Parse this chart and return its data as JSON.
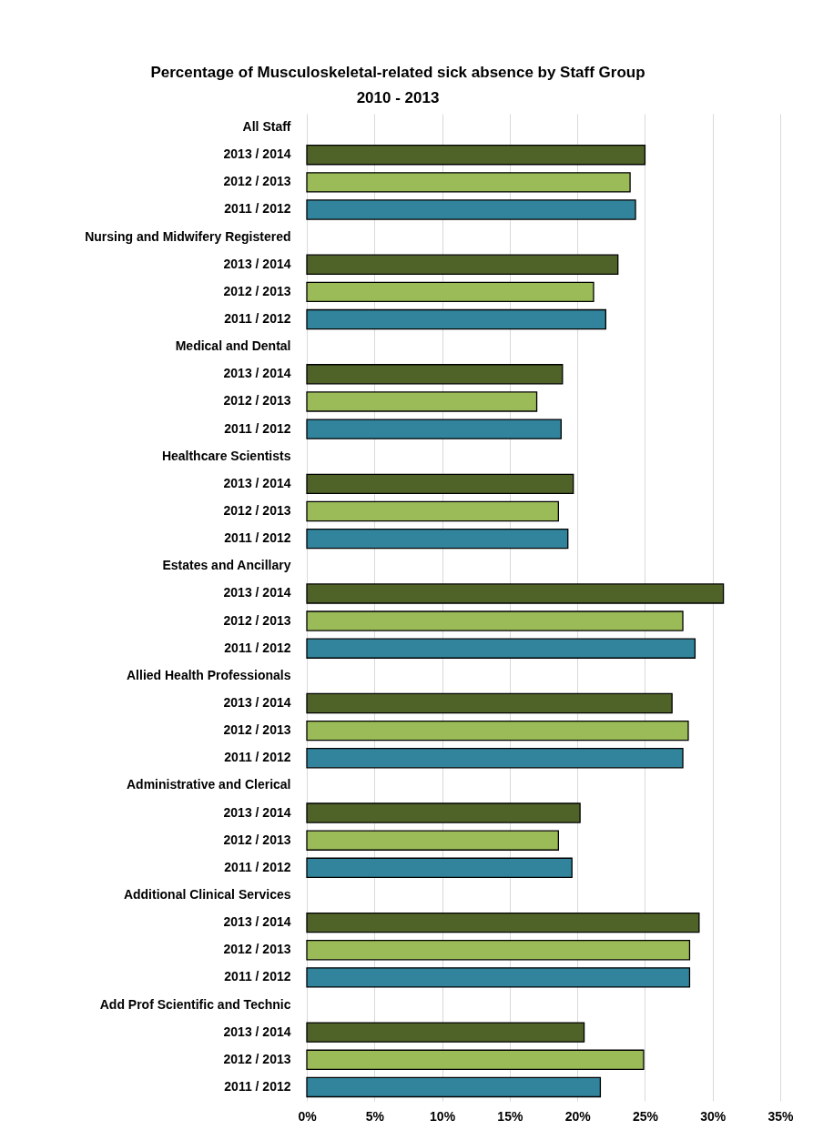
{
  "chart_data": {
    "type": "bar",
    "orientation": "horizontal",
    "title": "Percentage of Musculoskeletal-related sick absence by Staff Group\n2010 - 2013",
    "categories": [
      "All Staff",
      "2013 / 2014",
      "2012 / 2013",
      "2011 / 2012",
      "Nursing and Midwifery Registered",
      "2013 / 2014",
      "2012 / 2013",
      "2011 / 2012",
      "Medical and Dental",
      "2013 / 2014",
      "2012 / 2013",
      "2011 / 2012",
      "Healthcare Scientists",
      "2013 / 2014",
      "2012 / 2013",
      "2011 / 2012",
      "Estates and Ancillary",
      "2013 / 2014",
      "2012 / 2013",
      "2011 / 2012",
      "Allied Health Professionals",
      "2013 / 2014",
      "2012 / 2013",
      "2011 / 2012",
      "Administrative and Clerical",
      "2013 / 2014",
      "2012 / 2013",
      "2011 / 2012",
      "Additional Clinical Services",
      "2013 / 2014",
      "2012 / 2013",
      "2011 / 2012",
      "Add Prof Scientific and Technic",
      "2013 / 2014",
      "2012 / 2013",
      "2011 / 2012"
    ],
    "values": [
      null,
      25.0,
      23.9,
      24.3,
      null,
      23.0,
      21.2,
      22.1,
      null,
      18.9,
      17.0,
      18.8,
      null,
      19.7,
      18.6,
      19.3,
      null,
      30.8,
      27.8,
      28.7,
      null,
      27.0,
      28.2,
      27.8,
      null,
      20.2,
      18.6,
      19.6,
      null,
      29.0,
      28.3,
      28.3,
      null,
      20.5,
      24.9,
      21.7
    ],
    "colors": [
      null,
      "#4f6228",
      "#9bbb59",
      "#31849b",
      null,
      "#4f6228",
      "#9bbb59",
      "#31849b",
      null,
      "#4f6228",
      "#9bbb59",
      "#31849b",
      null,
      "#4f6228",
      "#9bbb59",
      "#31849b",
      null,
      "#4f6228",
      "#9bbb59",
      "#31849b",
      null,
      "#4f6228",
      "#9bbb59",
      "#31849b",
      null,
      "#4f6228",
      "#9bbb59",
      "#31849b",
      null,
      "#4f6228",
      "#9bbb59",
      "#31849b",
      null,
      "#4f6228",
      "#9bbb59",
      "#31849b"
    ],
    "xlim": [
      0,
      35
    ],
    "xticks": [
      {
        "value": 0,
        "label": "0%"
      },
      {
        "value": 5,
        "label": "5%"
      },
      {
        "value": 10,
        "label": "10%"
      },
      {
        "value": 15,
        "label": "15%"
      },
      {
        "value": 20,
        "label": "20%"
      },
      {
        "value": 25,
        "label": "25%"
      },
      {
        "value": 30,
        "label": "30%"
      },
      {
        "value": 35,
        "label": "35%"
      }
    ],
    "grid": "x"
  }
}
